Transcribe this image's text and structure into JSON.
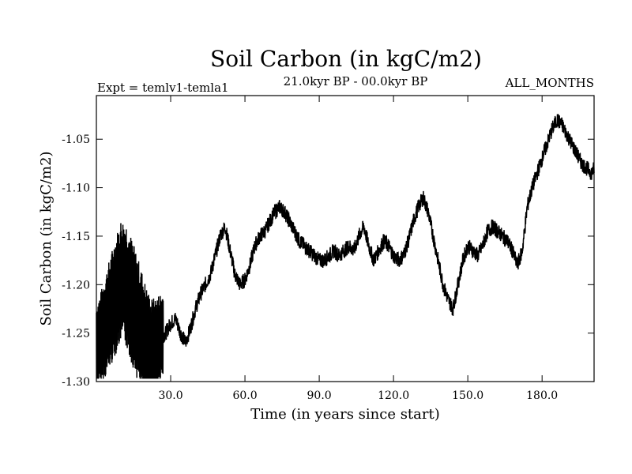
{
  "chart_data": {
    "type": "line",
    "title": "Soil Carbon (in kgC/m2)",
    "subtitle_left": "Expt = temlv1-temla1",
    "subtitle_center": "21.0kyr BP - 00.0kyr BP",
    "subtitle_right": "ALL_MONTHS",
    "xlabel": "Time (in years since start)",
    "ylabel": "Soil Carbon (in kgC/m2)",
    "xlim": [
      0,
      201
    ],
    "ylim": [
      -1.3,
      -1.005
    ],
    "xticks": [
      30,
      60,
      90,
      120,
      150,
      180
    ],
    "xtick_labels": [
      "30.0",
      "60.0",
      "90.0",
      "120.0",
      "150.0",
      "180.0"
    ],
    "yticks": [
      -1.3,
      -1.25,
      -1.2,
      -1.15,
      -1.1,
      -1.05
    ],
    "ytick_labels": [
      "-1.30",
      "-1.25",
      "-1.20",
      "-1.15",
      "-1.10",
      "-1.05"
    ],
    "grid": false,
    "legend": "none",
    "line_color": "#000000",
    "series": [
      {
        "x": [
          0,
          2,
          4,
          6,
          8,
          10,
          12,
          14,
          16,
          18,
          20,
          22,
          24,
          26,
          28,
          30,
          32,
          34,
          36,
          38,
          40,
          42,
          44,
          46,
          48,
          50,
          52,
          54,
          56,
          58,
          60,
          62,
          64,
          66,
          68,
          70,
          72,
          74,
          76,
          78,
          80,
          82,
          84,
          86,
          88,
          90,
          92,
          94,
          96,
          98,
          100,
          102,
          104,
          106,
          108,
          110,
          112,
          114,
          116,
          118,
          120,
          122,
          124,
          126,
          128,
          130,
          132,
          134,
          136,
          138,
          140,
          142,
          144,
          146,
          148,
          150,
          152,
          154,
          156,
          158,
          160,
          162,
          164,
          166,
          168,
          170,
          172,
          174,
          176,
          178,
          180,
          182,
          184,
          186,
          188,
          190,
          192,
          194,
          196,
          198,
          200,
          201
        ],
        "y": [
          -1.265,
          -1.255,
          -1.24,
          -1.225,
          -1.21,
          -1.195,
          -1.2,
          -1.215,
          -1.23,
          -1.245,
          -1.26,
          -1.27,
          -1.265,
          -1.255,
          -1.25,
          -1.24,
          -1.235,
          -1.25,
          -1.26,
          -1.245,
          -1.225,
          -1.21,
          -1.2,
          -1.19,
          -1.17,
          -1.15,
          -1.14,
          -1.165,
          -1.19,
          -1.2,
          -1.195,
          -1.18,
          -1.16,
          -1.15,
          -1.145,
          -1.135,
          -1.125,
          -1.12,
          -1.125,
          -1.135,
          -1.145,
          -1.155,
          -1.16,
          -1.165,
          -1.17,
          -1.175,
          -1.175,
          -1.17,
          -1.165,
          -1.17,
          -1.165,
          -1.16,
          -1.165,
          -1.15,
          -1.14,
          -1.16,
          -1.175,
          -1.165,
          -1.155,
          -1.16,
          -1.17,
          -1.175,
          -1.17,
          -1.155,
          -1.135,
          -1.12,
          -1.11,
          -1.125,
          -1.15,
          -1.175,
          -1.2,
          -1.215,
          -1.225,
          -1.2,
          -1.175,
          -1.16,
          -1.165,
          -1.17,
          -1.16,
          -1.145,
          -1.14,
          -1.145,
          -1.15,
          -1.155,
          -1.165,
          -1.18,
          -1.165,
          -1.12,
          -1.1,
          -1.085,
          -1.07,
          -1.055,
          -1.04,
          -1.03,
          -1.035,
          -1.045,
          -1.055,
          -1.065,
          -1.075,
          -1.08,
          -1.085,
          -1.08
        ]
      }
    ]
  }
}
